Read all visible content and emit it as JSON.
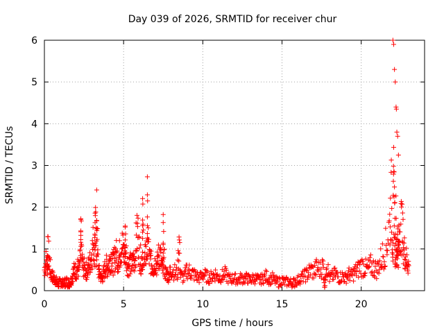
{
  "chart_data": {
    "type": "scatter",
    "title": "Day 039 of 2026, SRMTID for receiver chur",
    "xlabel": "GPS time / hours",
    "ylabel": "SRMTID / TECUs",
    "xlim": [
      0,
      24
    ],
    "ylim": [
      0,
      6
    ],
    "xticks": [
      0,
      5,
      10,
      15,
      20
    ],
    "xtick_labels": [
      "0",
      "5",
      "10",
      "15",
      "20"
    ],
    "yticks": [
      0,
      1,
      2,
      3,
      4,
      5,
      6
    ],
    "ytick_labels": [
      "0",
      "1",
      "2",
      "3",
      "4",
      "5",
      "6"
    ],
    "grid": true,
    "marker": "plus",
    "color": "#ff0000",
    "series": [
      {
        "name": "SRMTID",
        "x": [
          0.0,
          0.1,
          0.2,
          0.3,
          0.4,
          0.5,
          0.6,
          0.7,
          0.8,
          0.9,
          1.0,
          1.1,
          1.2,
          1.3,
          1.4,
          1.5,
          1.6,
          1.7,
          1.8,
          1.9,
          2.0,
          2.1,
          2.2,
          2.3,
          2.4,
          2.5,
          2.6,
          2.7,
          2.8,
          2.9,
          3.0,
          3.1,
          3.2,
          3.3,
          3.4,
          3.5,
          3.6,
          3.7,
          3.8,
          3.9,
          4.0,
          4.1,
          4.2,
          4.3,
          4.4,
          4.5,
          4.6,
          4.7,
          4.8,
          4.9,
          5.0,
          5.1,
          5.2,
          5.3,
          5.4,
          5.5,
          5.6,
          5.7,
          5.8,
          5.9,
          6.0,
          6.1,
          6.2,
          6.3,
          6.4,
          6.5,
          6.6,
          6.7,
          6.8,
          6.9,
          7.0,
          7.1,
          7.2,
          7.3,
          7.4,
          7.5,
          7.6,
          7.7,
          7.8,
          7.9,
          8.0,
          8.2,
          8.4,
          8.6,
          8.8,
          9.0,
          9.2,
          9.4,
          9.6,
          9.8,
          10.0,
          10.2,
          10.4,
          10.6,
          10.8,
          11.0,
          11.2,
          11.4,
          11.6,
          11.8,
          12.0,
          12.2,
          12.4,
          12.6,
          12.8,
          13.0,
          13.2,
          13.4,
          13.6,
          13.8,
          14.0,
          14.2,
          14.4,
          14.6,
          14.8,
          15.0,
          15.2,
          15.4,
          15.6,
          15.8,
          16.0,
          16.2,
          16.4,
          16.6,
          16.8,
          17.0,
          17.2,
          17.4,
          17.6,
          17.8,
          18.0,
          18.2,
          18.4,
          18.6,
          18.8,
          19.0,
          19.2,
          19.4,
          19.6,
          19.8,
          20.0,
          20.2,
          20.4,
          20.6,
          20.8,
          21.0,
          21.2,
          21.4,
          21.6,
          21.8,
          21.9,
          22.0,
          22.05,
          22.1,
          22.15,
          22.2,
          22.25,
          22.3,
          22.35,
          22.4,
          22.5,
          22.6,
          22.7,
          22.8,
          22.9,
          23.0,
          3.2,
          3.3,
          6.2,
          6.5,
          7.5,
          8.5,
          0.2,
          2.3,
          5.1,
          17.7
        ],
        "y": [
          0.5,
          0.7,
          0.6,
          0.8,
          0.4,
          0.35,
          0.3,
          0.25,
          0.2,
          0.15,
          0.2,
          0.18,
          0.15,
          0.2,
          0.22,
          0.18,
          0.2,
          0.25,
          0.4,
          0.5,
          0.45,
          0.55,
          0.5,
          0.9,
          0.6,
          0.55,
          0.5,
          0.45,
          0.6,
          0.7,
          0.9,
          1.2,
          1.0,
          0.8,
          0.5,
          0.4,
          0.3,
          0.35,
          0.5,
          0.6,
          0.55,
          0.7,
          0.8,
          0.65,
          0.7,
          0.9,
          0.8,
          0.75,
          1.0,
          1.1,
          0.9,
          0.85,
          0.7,
          0.6,
          0.65,
          0.6,
          0.7,
          0.75,
          1.2,
          1.4,
          0.9,
          0.7,
          0.8,
          0.6,
          0.9,
          1.0,
          0.8,
          0.7,
          0.6,
          0.55,
          0.7,
          0.6,
          0.8,
          0.9,
          0.6,
          0.5,
          0.45,
          0.4,
          0.35,
          0.4,
          0.5,
          0.45,
          0.4,
          0.35,
          0.3,
          0.5,
          0.45,
          0.4,
          0.35,
          0.3,
          0.4,
          0.35,
          0.3,
          0.35,
          0.4,
          0.3,
          0.35,
          0.4,
          0.3,
          0.28,
          0.3,
          0.25,
          0.3,
          0.28,
          0.3,
          0.25,
          0.3,
          0.28,
          0.25,
          0.3,
          0.35,
          0.25,
          0.3,
          0.22,
          0.2,
          0.25,
          0.2,
          0.22,
          0.18,
          0.2,
          0.25,
          0.3,
          0.35,
          0.4,
          0.5,
          0.45,
          0.55,
          0.5,
          0.6,
          0.7,
          0.3,
          0.35,
          0.4,
          0.3,
          0.35,
          0.3,
          0.4,
          0.35,
          0.45,
          0.5,
          0.6,
          0.55,
          0.5,
          0.6,
          0.55,
          0.5,
          0.7,
          0.9,
          1.1,
          1.6,
          2.2,
          1.0,
          2.5,
          2.0,
          0.8,
          1.8,
          0.5,
          1.5,
          0.9,
          1.2,
          1.7,
          1.4,
          1.0,
          0.8,
          0.7,
          0.6,
          1.75,
          1.85,
          1.7,
          1.9,
          1.4,
          1.2,
          0.95,
          1.4,
          1.3,
          0.02
        ],
        "outliers_x": [
          22.0,
          22.05,
          22.1,
          22.15,
          22.2,
          22.22,
          22.25,
          22.3,
          22.35
        ],
        "outliers_y": [
          6.0,
          5.9,
          5.3,
          5.0,
          4.4,
          4.35,
          3.8,
          3.7,
          3.25
        ]
      }
    ]
  }
}
